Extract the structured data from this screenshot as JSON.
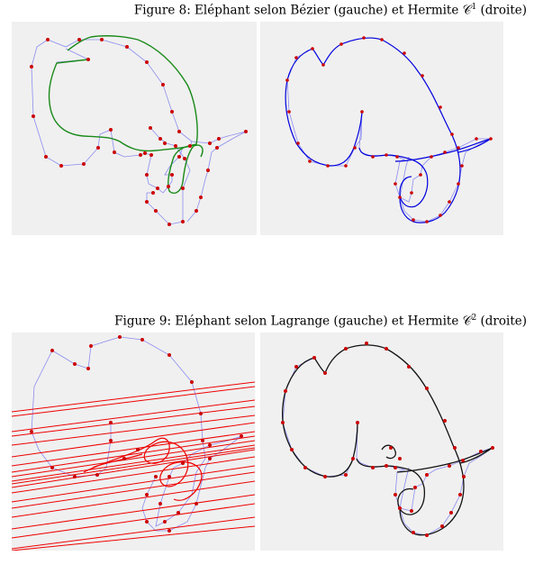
{
  "figure8": {
    "caption": "Figure 8: Eléphant selon Bézier (gauche) et Hermite 𝒞",
    "caption_sup": "1",
    "caption_tail": " (droite)"
  },
  "figure9": {
    "caption": "Figure 9: Eléphant selon Lagrange (gauche) et Hermite 𝒞",
    "caption_sup": "2",
    "caption_tail": " (droite)"
  },
  "colors": {
    "panel_bg": "#f0f0f0",
    "control_polygon": "#8c8cf0",
    "control_point": "#cc0000",
    "bezier_curve": "#1a8a1a",
    "hermite_c1_curve": "#0000dd",
    "lagrange_curve": "#ee0000",
    "hermite_c2_curve": "#111111"
  }
}
